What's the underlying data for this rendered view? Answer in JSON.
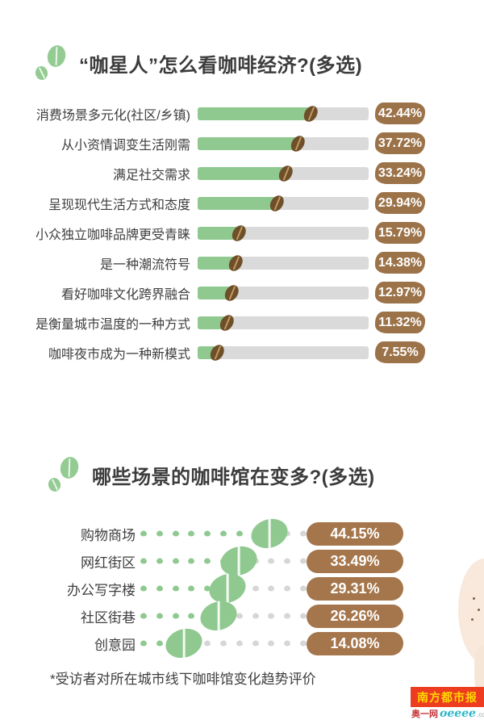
{
  "colors": {
    "bar_green": "#8fc98f",
    "bar_track_gray": "#dadada",
    "badge_brown": "#9c7349",
    "badge_brown2": "#a5764c",
    "bean_dark_brown": "#6f4f2a",
    "dot_green": "#8fc98f",
    "dot_gray": "#d6d6d6",
    "title_icon_green": "#93cb93",
    "text_dark": "#3e3e3e",
    "brand_red": "#ee3c20",
    "brand_yellow": "#ffd800",
    "brand_cn_red": "#c5373b",
    "brand_teal": "#2fb6c9",
    "brand_gray": "#9aa0a3"
  },
  "chart_data": [
    {
      "type": "bar",
      "title": "“咖星人”怎么看咖啡经济?(多选)",
      "categories": [
        "消费场景多元化(社区/乡镇)",
        "从小资情调变生活刚需",
        "满足社交需求",
        "呈现现代生活方式和态度",
        "小众独立咖啡品牌更受青睐",
        "是一种潮流符号",
        "看好咖啡文化跨界融合",
        "是衡量城市温度的一种方式",
        "咖啡夜市成为一种新模式"
      ],
      "values": [
        42.44,
        37.72,
        33.24,
        29.94,
        15.79,
        14.38,
        12.97,
        11.32,
        7.55
      ],
      "value_labels": [
        "42.44%",
        "37.72%",
        "33.24%",
        "29.94%",
        "15.79%",
        "14.38%",
        "12.97%",
        "11.32%",
        "7.55%"
      ],
      "xlabel": "",
      "ylabel": "",
      "xlim": [
        0,
        64
      ],
      "legend": "none",
      "grid": false
    },
    {
      "type": "bar",
      "title": "哪些场景的咖啡馆在变多?(多选)",
      "categories": [
        "购物商场",
        "网红街区",
        "办公写字楼",
        "社区街巷",
        "创意园"
      ],
      "values": [
        44.15,
        33.49,
        29.31,
        26.26,
        14.08
      ],
      "value_labels": [
        "44.15%",
        "33.49%",
        "29.31%",
        "26.26%",
        "14.08%"
      ],
      "xlabel": "",
      "ylabel": "",
      "xlim": [
        0,
        56
      ],
      "legend": "none",
      "grid": false,
      "footnote": "*受访者对所在城市线下咖啡馆变化趋势评价"
    }
  ],
  "footer": {
    "brand": "南方都市报",
    "site_cn": "奥一网",
    "site_en": "oeeee",
    "site_tld": ".com"
  }
}
